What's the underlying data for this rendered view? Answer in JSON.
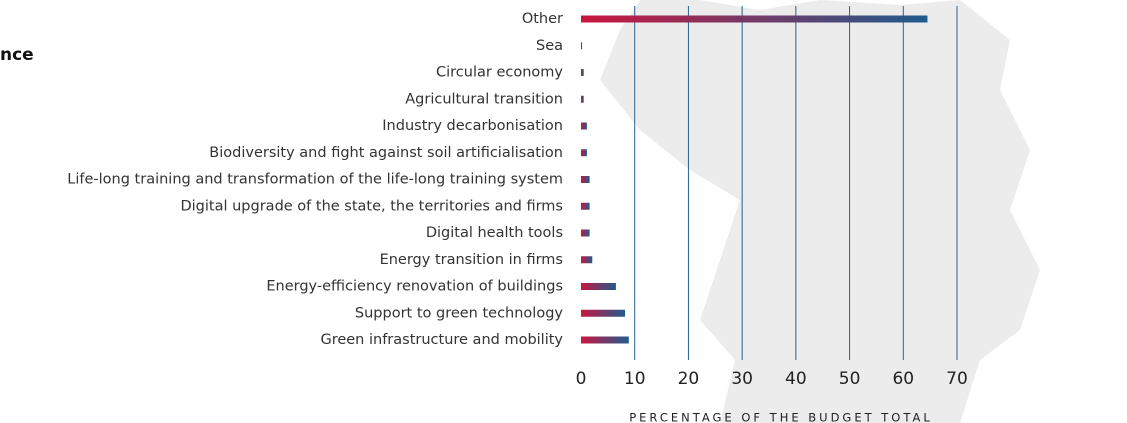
{
  "chart_data": {
    "type": "bar",
    "orientation": "horizontal",
    "title": "nce",
    "categories": [
      "Other",
      "Sea",
      "Circular economy",
      "Agricultural transition",
      "Industry decarbonisation",
      "Biodiversity and fight against soil artificialisation",
      "Life-long training and transformation of the life-long training system",
      "Digital upgrade of the state, the territories and firms",
      "Digital health tools",
      "Energy transition in firms",
      "Energy-efficiency renovation of buildings",
      "Support to green technology",
      "Green infrastructure and mobility"
    ],
    "values": [
      64.5,
      0.2,
      0.5,
      0.5,
      1.1,
      1.1,
      1.6,
      1.6,
      1.6,
      2.1,
      6.5,
      8.2,
      8.9
    ],
    "xlabel": "PERCENTAGE OF THE BUDGET TOTAL",
    "xlim": [
      0,
      70
    ],
    "xticks": [
      0,
      10,
      20,
      30,
      40,
      50,
      60,
      70
    ],
    "grid": true,
    "gradient": [
      "#c8173f",
      "#1f5c8e"
    ],
    "grid_color": "#2a5f8f"
  }
}
